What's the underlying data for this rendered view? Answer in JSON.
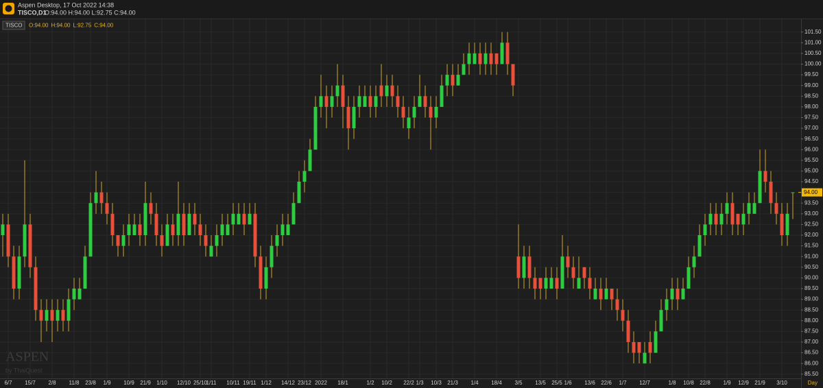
{
  "header": {
    "app": "Aspen Desktop, 17 Oct 2022 14:38",
    "symbol_tf": "TISCO,D1",
    "ohlc_text": "O:94.00 H:94.00 L:92.75 C:94.00"
  },
  "watermark": {
    "brand": "ASPEN",
    "sub": "by ThaiQuest"
  },
  "chart_data": {
    "type": "candlestick",
    "symbol": "TISCO",
    "legend_values": [
      "O:94.00",
      "H:94.00",
      "L:92.75",
      "C:94.00"
    ],
    "x_label": "Day",
    "up_color": "#2ecc40",
    "down_color": "#e8503a",
    "wick_color": "#d4a82a",
    "grid": true,
    "last_price": {
      "value": 94,
      "label": "94.00"
    },
    "ylim": [
      85.3,
      102.1
    ],
    "yticks": [
      {
        "value": 85.5,
        "label": "85.50"
      },
      {
        "value": 86,
        "label": "86.00"
      },
      {
        "value": 86.5,
        "label": "86.50"
      },
      {
        "value": 87,
        "label": "87.00"
      },
      {
        "value": 87.5,
        "label": "87.50"
      },
      {
        "value": 88,
        "label": "88.00"
      },
      {
        "value": 88.5,
        "label": "88.50"
      },
      {
        "value": 89,
        "label": "89.00"
      },
      {
        "value": 89.5,
        "label": "89.50"
      },
      {
        "value": 90,
        "label": "90.00"
      },
      {
        "value": 90.5,
        "label": "90.50"
      },
      {
        "value": 91,
        "label": "91.00"
      },
      {
        "value": 91.5,
        "label": "91.50"
      },
      {
        "value": 92,
        "label": "92.00"
      },
      {
        "value": 92.5,
        "label": "92.50"
      },
      {
        "value": 93,
        "label": "93.00"
      },
      {
        "value": 93.5,
        "label": "93.50"
      },
      {
        "value": 94,
        "label": "94.00"
      },
      {
        "value": 94.5,
        "label": "94.50"
      },
      {
        "value": 95,
        "label": "95.00"
      },
      {
        "value": 95.5,
        "label": "95.50"
      },
      {
        "value": 96,
        "label": "96.00"
      },
      {
        "value": 96.5,
        "label": "96.50"
      },
      {
        "value": 97,
        "label": "97.00"
      },
      {
        "value": 97.5,
        "label": "97.50"
      },
      {
        "value": 98,
        "label": "98.00"
      },
      {
        "value": 98.5,
        "label": "98.50"
      },
      {
        "value": 99,
        "label": "99.00"
      },
      {
        "value": 99.5,
        "label": "99.50"
      },
      {
        "value": 100,
        "label": "100.00"
      },
      {
        "value": 100.5,
        "label": "100.50"
      },
      {
        "value": 101,
        "label": "101.00"
      },
      {
        "value": 101.5,
        "label": "101.50"
      }
    ],
    "categories": [
      null,
      "6/7",
      null,
      null,
      null,
      "15/7",
      null,
      null,
      null,
      "2/8",
      null,
      null,
      null,
      "11/8",
      null,
      null,
      "23/8",
      null,
      null,
      "1/9",
      null,
      null,
      null,
      "10/9",
      null,
      null,
      "21/9",
      null,
      null,
      "1/10",
      null,
      null,
      null,
      "12/10",
      null,
      null,
      "25/10",
      null,
      "1/11",
      null,
      null,
      null,
      "10/11",
      null,
      null,
      "19/11",
      null,
      null,
      "1/12",
      null,
      null,
      null,
      "14/12",
      null,
      null,
      "23/12",
      null,
      null,
      "2022",
      null,
      null,
      null,
      "18/1",
      null,
      null,
      null,
      null,
      "1/2",
      null,
      null,
      "10/2",
      null,
      null,
      null,
      "22/2",
      null,
      "1/3",
      null,
      null,
      "10/3",
      null,
      null,
      "21/3",
      null,
      null,
      null,
      "1/4",
      null,
      null,
      null,
      "18/4",
      null,
      null,
      null,
      "3/5",
      null,
      null,
      null,
      "13/5",
      null,
      null,
      "25/5",
      null,
      "1/6",
      null,
      null,
      null,
      "13/6",
      null,
      null,
      "22/6",
      null,
      null,
      "1/7",
      null,
      null,
      null,
      "12/7",
      null,
      null,
      null,
      null,
      "1/8",
      null,
      null,
      "10/8",
      null,
      null,
      "22/8",
      null,
      null,
      null,
      "1/9",
      null,
      null,
      "12/9",
      null,
      null,
      "21/9",
      null,
      null,
      null,
      "3/10",
      null,
      null
    ],
    "ohlc": [
      [
        92,
        93,
        91,
        92.5
      ],
      [
        92.5,
        93,
        90.5,
        91
      ],
      [
        91,
        91.5,
        89,
        89.5
      ],
      [
        89.5,
        91.5,
        89,
        91
      ],
      [
        91,
        95.5,
        90.5,
        92.5
      ],
      [
        92.5,
        93,
        90,
        90.5
      ],
      [
        90.5,
        91,
        88,
        88.5
      ],
      [
        88.5,
        89,
        87,
        88
      ],
      [
        88,
        89,
        87.5,
        88.5
      ],
      [
        88.5,
        89,
        87,
        88
      ],
      [
        88,
        89,
        87.5,
        88.5
      ],
      [
        88.5,
        89,
        87.5,
        88
      ],
      [
        88,
        89.5,
        87.5,
        89
      ],
      [
        89,
        90,
        88.5,
        89.5
      ],
      [
        89,
        90,
        89,
        89.5
      ],
      [
        89.5,
        91.5,
        89.5,
        91
      ],
      [
        91,
        94,
        91,
        93.5
      ],
      [
        93.5,
        95,
        93,
        94
      ],
      [
        94,
        94.5,
        93,
        93.5
      ],
      [
        93.5,
        94,
        92.5,
        93
      ],
      [
        93,
        93.5,
        91.5,
        92
      ],
      [
        92,
        92,
        91,
        91.5
      ],
      [
        91.5,
        92.5,
        91,
        92
      ],
      [
        92,
        93,
        91.5,
        92.5
      ],
      [
        92,
        93,
        92,
        92.5
      ],
      [
        92.5,
        93,
        91.5,
        92
      ],
      [
        92,
        94.5,
        91.5,
        93.5
      ],
      [
        93.5,
        94,
        92.5,
        93
      ],
      [
        93,
        93.5,
        91.5,
        92
      ],
      [
        92,
        92.5,
        91,
        91.5
      ],
      [
        91.5,
        93,
        91.5,
        92.5
      ],
      [
        92.5,
        93,
        91.5,
        92
      ],
      [
        92,
        94.5,
        91.5,
        93
      ],
      [
        93,
        93.5,
        91.5,
        92
      ],
      [
        92,
        93.5,
        92,
        93
      ],
      [
        93,
        93.5,
        92,
        92.5
      ],
      [
        92.5,
        93,
        91.5,
        92
      ],
      [
        92,
        92.5,
        91,
        91.5
      ],
      [
        91,
        92,
        91,
        91.5
      ],
      [
        91.5,
        92.5,
        91,
        92
      ],
      [
        92,
        93,
        91.5,
        92.5
      ],
      [
        92,
        93,
        92,
        92.5
      ],
      [
        92.5,
        93.5,
        92,
        93
      ],
      [
        92.5,
        93.5,
        92.5,
        93
      ],
      [
        93,
        93.5,
        92,
        92.5
      ],
      [
        92.5,
        93.5,
        92.5,
        93
      ],
      [
        93,
        93.5,
        90.5,
        91
      ],
      [
        91,
        91.5,
        89,
        89.5
      ],
      [
        89.5,
        91,
        89,
        90.5
      ],
      [
        90.5,
        92,
        90,
        91.5
      ],
      [
        91.5,
        92.5,
        91,
        92
      ],
      [
        92,
        93,
        91.5,
        92.5
      ],
      [
        92,
        93,
        92,
        92.5
      ],
      [
        92.5,
        94,
        92.5,
        93.5
      ],
      [
        93.5,
        95,
        93.5,
        94.5
      ],
      [
        94.5,
        95.5,
        94,
        95
      ],
      [
        95,
        96.5,
        95,
        96
      ],
      [
        96,
        98.5,
        96,
        98
      ],
      [
        98,
        99.5,
        97.5,
        98.5
      ],
      [
        98.5,
        99,
        97,
        98
      ],
      [
        98,
        99,
        97.5,
        98.5
      ],
      [
        98.5,
        100,
        98,
        99
      ],
      [
        99,
        99.5,
        97,
        98
      ],
      [
        98,
        98.5,
        96,
        97
      ],
      [
        97,
        98.5,
        96.5,
        98
      ],
      [
        98,
        99,
        97.5,
        98.5
      ],
      [
        98,
        99,
        98,
        98.5
      ],
      [
        98.5,
        99,
        97.5,
        98
      ],
      [
        98,
        99,
        97.5,
        98.5
      ],
      [
        99,
        100,
        98,
        98.5
      ],
      [
        98.5,
        99.5,
        98,
        99
      ],
      [
        99,
        99.5,
        98,
        98.5
      ],
      [
        98.5,
        99,
        97.5,
        98
      ],
      [
        98,
        98.5,
        97,
        97.5
      ],
      [
        97,
        98,
        96.5,
        97.5
      ],
      [
        97.5,
        98.5,
        97,
        98
      ],
      [
        98,
        99.5,
        98,
        98.5
      ],
      [
        98.5,
        99,
        97.5,
        98
      ],
      [
        98,
        98.5,
        96,
        97.5
      ],
      [
        97.5,
        98.5,
        97,
        98
      ],
      [
        98,
        99.5,
        98,
        99
      ],
      [
        99,
        100,
        98.5,
        99.5
      ],
      [
        99.5,
        100,
        98.5,
        99
      ],
      [
        99,
        100,
        99,
        99.5
      ],
      [
        99.5,
        100.5,
        99.5,
        100
      ],
      [
        100,
        101,
        99.5,
        100.5
      ],
      [
        100,
        101,
        100,
        100.5
      ],
      [
        100.5,
        101,
        99.5,
        100
      ],
      [
        100,
        101,
        99.5,
        100.5
      ],
      [
        100.5,
        101,
        99.5,
        100
      ],
      [
        100.5,
        100.5,
        99.5,
        100
      ],
      [
        100,
        101.5,
        100,
        101
      ],
      [
        101,
        101.5,
        99.5,
        100
      ],
      [
        100,
        100,
        98.5,
        99
      ],
      [
        91,
        92.5,
        89.5,
        90
      ],
      [
        90,
        91.5,
        89.5,
        91
      ],
      [
        91,
        91.5,
        89.5,
        90
      ],
      [
        90,
        90.5,
        89,
        89.5
      ],
      [
        90,
        90,
        89,
        89.5
      ],
      [
        89.5,
        90.5,
        89,
        90
      ],
      [
        89.5,
        90.5,
        89.5,
        90
      ],
      [
        90,
        90.5,
        89,
        89.5
      ],
      [
        89.5,
        92,
        89.5,
        91
      ],
      [
        91,
        91.5,
        90,
        90.5
      ],
      [
        90.5,
        91,
        89.5,
        90
      ],
      [
        89.5,
        91,
        89.5,
        90
      ],
      [
        90.5,
        90.5,
        89.5,
        90
      ],
      [
        90,
        90.5,
        89,
        89.5
      ],
      [
        89,
        90,
        89,
        89.5
      ],
      [
        89.5,
        90,
        88.5,
        89
      ],
      [
        89,
        90,
        89,
        89.5
      ],
      [
        89.5,
        89.5,
        88.5,
        89
      ],
      [
        89,
        89.5,
        88,
        88.5
      ],
      [
        88.5,
        89,
        87.5,
        88
      ],
      [
        88,
        88.5,
        86.5,
        87
      ],
      [
        87,
        87.5,
        86,
        86.5
      ],
      [
        87,
        87,
        86,
        86.5
      ],
      [
        86,
        87,
        86,
        86.5
      ],
      [
        87,
        87.5,
        86,
        86.5
      ],
      [
        86.5,
        88,
        86.5,
        87.5
      ],
      [
        87.5,
        89,
        87.5,
        88.5
      ],
      [
        88.5,
        89.5,
        88,
        89
      ],
      [
        89,
        90,
        88.5,
        89.5
      ],
      [
        89.5,
        90,
        88.5,
        89
      ],
      [
        89,
        90,
        89,
        89.5
      ],
      [
        89.5,
        91,
        89.5,
        90.5
      ],
      [
        90.5,
        91.5,
        90,
        91
      ],
      [
        91,
        92.5,
        91,
        92
      ],
      [
        92,
        93,
        91.5,
        92.5
      ],
      [
        92.5,
        93.5,
        92,
        93
      ],
      [
        93,
        93.5,
        92,
        92.5
      ],
      [
        92.5,
        93.5,
        92,
        93
      ],
      [
        93,
        94,
        92.5,
        93.5
      ],
      [
        93.5,
        94,
        92,
        92.5
      ],
      [
        93,
        93,
        92,
        92.5
      ],
      [
        92.5,
        93.5,
        92,
        93
      ],
      [
        93,
        94,
        92.5,
        93.5
      ],
      [
        93,
        94,
        93,
        93.5
      ],
      [
        93.5,
        96,
        93.5,
        95
      ],
      [
        95,
        96,
        94,
        94.5
      ],
      [
        94.5,
        95,
        93,
        93.5
      ],
      [
        93.5,
        94,
        92.5,
        93
      ],
      [
        93,
        93.5,
        91.5,
        92
      ],
      [
        92,
        93.5,
        91.5,
        93
      ],
      [
        94,
        94,
        92.75,
        94
      ]
    ]
  }
}
